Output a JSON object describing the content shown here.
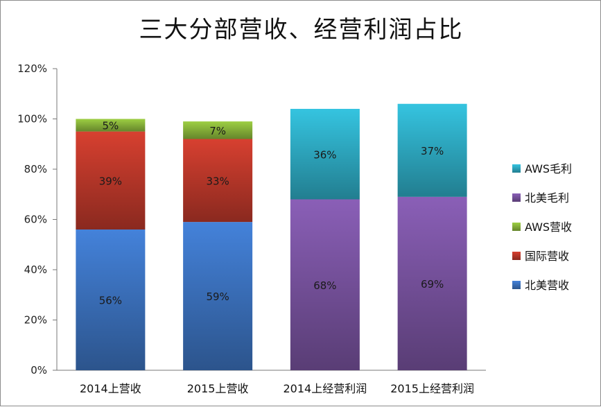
{
  "chart_data": {
    "type": "bar",
    "stacked": true,
    "title": "三大分部营收、经营利润占比",
    "xlabel": "",
    "ylabel": "",
    "categories": [
      "2014上营收",
      "2015上营收",
      "2014上经营利润",
      "2015上经营利润"
    ],
    "ylim": [
      0,
      120
    ],
    "yticks": [
      "0%",
      "20%",
      "40%",
      "60%",
      "80%",
      "100%",
      "120%"
    ],
    "series": [
      {
        "name": "北美营收",
        "color": "#3d74c3",
        "values": [
          56,
          59,
          null,
          null
        ],
        "labels": [
          "56%",
          "59%",
          "",
          ""
        ]
      },
      {
        "name": "国际营收",
        "color": "#c0392b",
        "values": [
          39,
          33,
          null,
          null
        ],
        "labels": [
          "39%",
          "33%",
          "",
          ""
        ]
      },
      {
        "name": "AWS营收",
        "color": "#8cb93c",
        "values": [
          5,
          7,
          null,
          null
        ],
        "labels": [
          "5%",
          "7%",
          "",
          ""
        ]
      },
      {
        "name": "北美毛利",
        "color": "#7b55a3",
        "values": [
          null,
          null,
          68,
          69
        ],
        "labels": [
          "",
          "",
          "68%",
          "69%"
        ]
      },
      {
        "name": "AWS毛利",
        "color": "#2fafc8",
        "values": [
          null,
          null,
          36,
          37
        ],
        "labels": [
          "",
          "",
          "36%",
          "37%"
        ]
      }
    ],
    "legend_position": "right",
    "legend_order": [
      "AWS毛利",
      "北美毛利",
      "AWS营收",
      "国际营收",
      "北美营收"
    ],
    "grid": false
  }
}
